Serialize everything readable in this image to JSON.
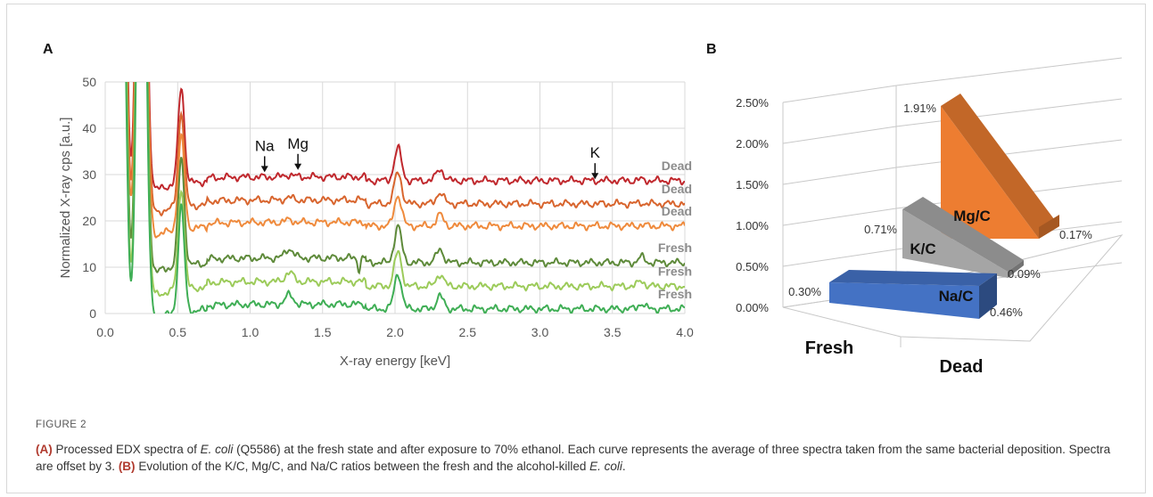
{
  "figure": {
    "panel_a_label": "A",
    "panel_b_label": "B",
    "caption_label": "FIGURE 2",
    "caption_parts": [
      {
        "t": "(A)",
        "s": "b"
      },
      {
        "t": " Processed EDX spectra of ",
        "s": ""
      },
      {
        "t": "E. coli",
        "s": "i"
      },
      {
        "t": " (Q5586) at the fresh state and after exposure to 70% ethanol. Each curve represents the average of three spectra taken from the same bacterial deposition. Spectra are offset by 3. ",
        "s": ""
      },
      {
        "t": "(B)",
        "s": "b"
      },
      {
        "t": " Evolution of the K/C, Mg/C, and Na/C ratios between the fresh and the alcohol-killed ",
        "s": ""
      },
      {
        "t": "E. coli",
        "s": "i"
      },
      {
        "t": ".",
        "s": ""
      }
    ]
  },
  "chart_data": [
    {
      "type": "line",
      "xlabel": "X-ray energy [keV]",
      "ylabel": "Normalized X-ray cps [a.u.]",
      "xlim": [
        0,
        4
      ],
      "ylim": [
        0,
        50
      ],
      "xticks": [
        "0.0",
        "0.5",
        "1.0",
        "1.5",
        "2.0",
        "2.5",
        "3.0",
        "3.5",
        "4.0"
      ],
      "yticks": [
        "0",
        "10",
        "20",
        "30",
        "40",
        "50"
      ],
      "grid": true,
      "annotations": [
        {
          "label": "Na",
          "x": 1.1,
          "y": 30.5
        },
        {
          "label": "Mg",
          "x": 1.33,
          "y": 31
        },
        {
          "label": "K",
          "x": 3.38,
          "y": 29
        }
      ],
      "series": [
        {
          "name": "Dead",
          "color": "#c0282d",
          "offset": 28.7,
          "peak_scale": 1.0
        },
        {
          "name": "Dead",
          "color": "#d8652e",
          "offset": 23.7,
          "peak_scale": 0.97
        },
        {
          "name": "Dead",
          "color": "#ef8a3c",
          "offset": 18.9,
          "peak_scale": 0.95
        },
        {
          "name": "Fresh",
          "color": "#5e8a3a",
          "offset": 11.0,
          "peak_scale": 1.12
        },
        {
          "name": "Fresh",
          "color": "#9ccb5a",
          "offset": 5.9,
          "peak_scale": 1.05
        },
        {
          "name": "Fresh",
          "color": "#3fae55",
          "offset": 1.0,
          "peak_scale": 1.1
        }
      ]
    },
    {
      "type": "bar",
      "categories": [
        "Fresh",
        "Dead"
      ],
      "ylim": [
        0,
        2.5
      ],
      "yticks": [
        "0.00%",
        "0.50%",
        "1.00%",
        "1.50%",
        "2.00%",
        "2.50%"
      ],
      "series": [
        {
          "name": "Na/C",
          "color": "#4472c4",
          "values": [
            0.3,
            0.46
          ],
          "labels": [
            "0.30%",
            "0.46%"
          ]
        },
        {
          "name": "K/C",
          "color": "#a5a5a5",
          "values": [
            0.71,
            0.09
          ],
          "labels": [
            "0.71%",
            "0.09%"
          ]
        },
        {
          "name": "Mg/C",
          "color": "#ed7d31",
          "values": [
            1.91,
            0.17
          ],
          "labels": [
            "1.91%",
            "0.17%"
          ]
        }
      ]
    }
  ]
}
